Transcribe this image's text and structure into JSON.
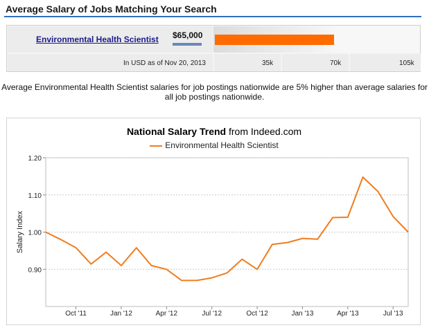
{
  "header": {
    "title": "Average Salary of Jobs Matching Your Search"
  },
  "salary": {
    "job_title": "Environmental Health Scientist",
    "amount": "$65,000",
    "bar_value": 65000,
    "bar_max": 105000,
    "as_of": "In USD as of Nov 20, 2013",
    "scale_labels": [
      "35k",
      "70k",
      "105k"
    ]
  },
  "description": "Average Environmental Health Scientist salaries for job postings nationwide are 5% higher than average salaries for all job postings nationwide.",
  "colors": {
    "line": "#f07c1c",
    "bar": "#ff6b00",
    "header_rule": "#2e6fbf"
  },
  "chart_data": {
    "type": "line",
    "title_bold": "National Salary Trend",
    "title_rest": " from Indeed.com",
    "ylabel": "Salary Index",
    "ylim": [
      0.8,
      1.2
    ],
    "yticks": [
      "0.90",
      "1.00",
      "1.10",
      "1.20"
    ],
    "ytick_values": [
      0.9,
      1.0,
      1.1,
      1.2
    ],
    "xlim": [
      "2011-08",
      "2013-08"
    ],
    "xticks": [
      "Oct '11",
      "Jan '12",
      "Apr '12",
      "Jul '12",
      "Oct '12",
      "Jan '13",
      "Apr '13",
      "Jul '13"
    ],
    "xtick_dates": [
      "2011-10",
      "2012-01",
      "2012-04",
      "2012-07",
      "2012-10",
      "2013-01",
      "2013-04",
      "2013-07"
    ],
    "grid": true,
    "series": [
      {
        "name": "Environmental Health Scientist",
        "x": [
          "2011-08",
          "2011-09",
          "2011-10",
          "2011-11",
          "2011-12",
          "2012-01",
          "2012-02",
          "2012-03",
          "2012-04",
          "2012-05",
          "2012-06",
          "2012-07",
          "2012-08",
          "2012-09",
          "2012-10",
          "2012-11",
          "2012-12",
          "2013-01",
          "2013-02",
          "2013-03",
          "2013-04",
          "2013-05",
          "2013-06",
          "2013-07",
          "2013-08"
        ],
        "values": [
          1.0,
          0.98,
          0.958,
          0.914,
          0.946,
          0.91,
          0.958,
          0.91,
          0.9,
          0.87,
          0.87,
          0.877,
          0.89,
          0.927,
          0.9,
          0.967,
          0.972,
          0.983,
          0.981,
          1.039,
          1.04,
          1.148,
          1.109,
          1.042,
          1.0
        ]
      }
    ]
  }
}
